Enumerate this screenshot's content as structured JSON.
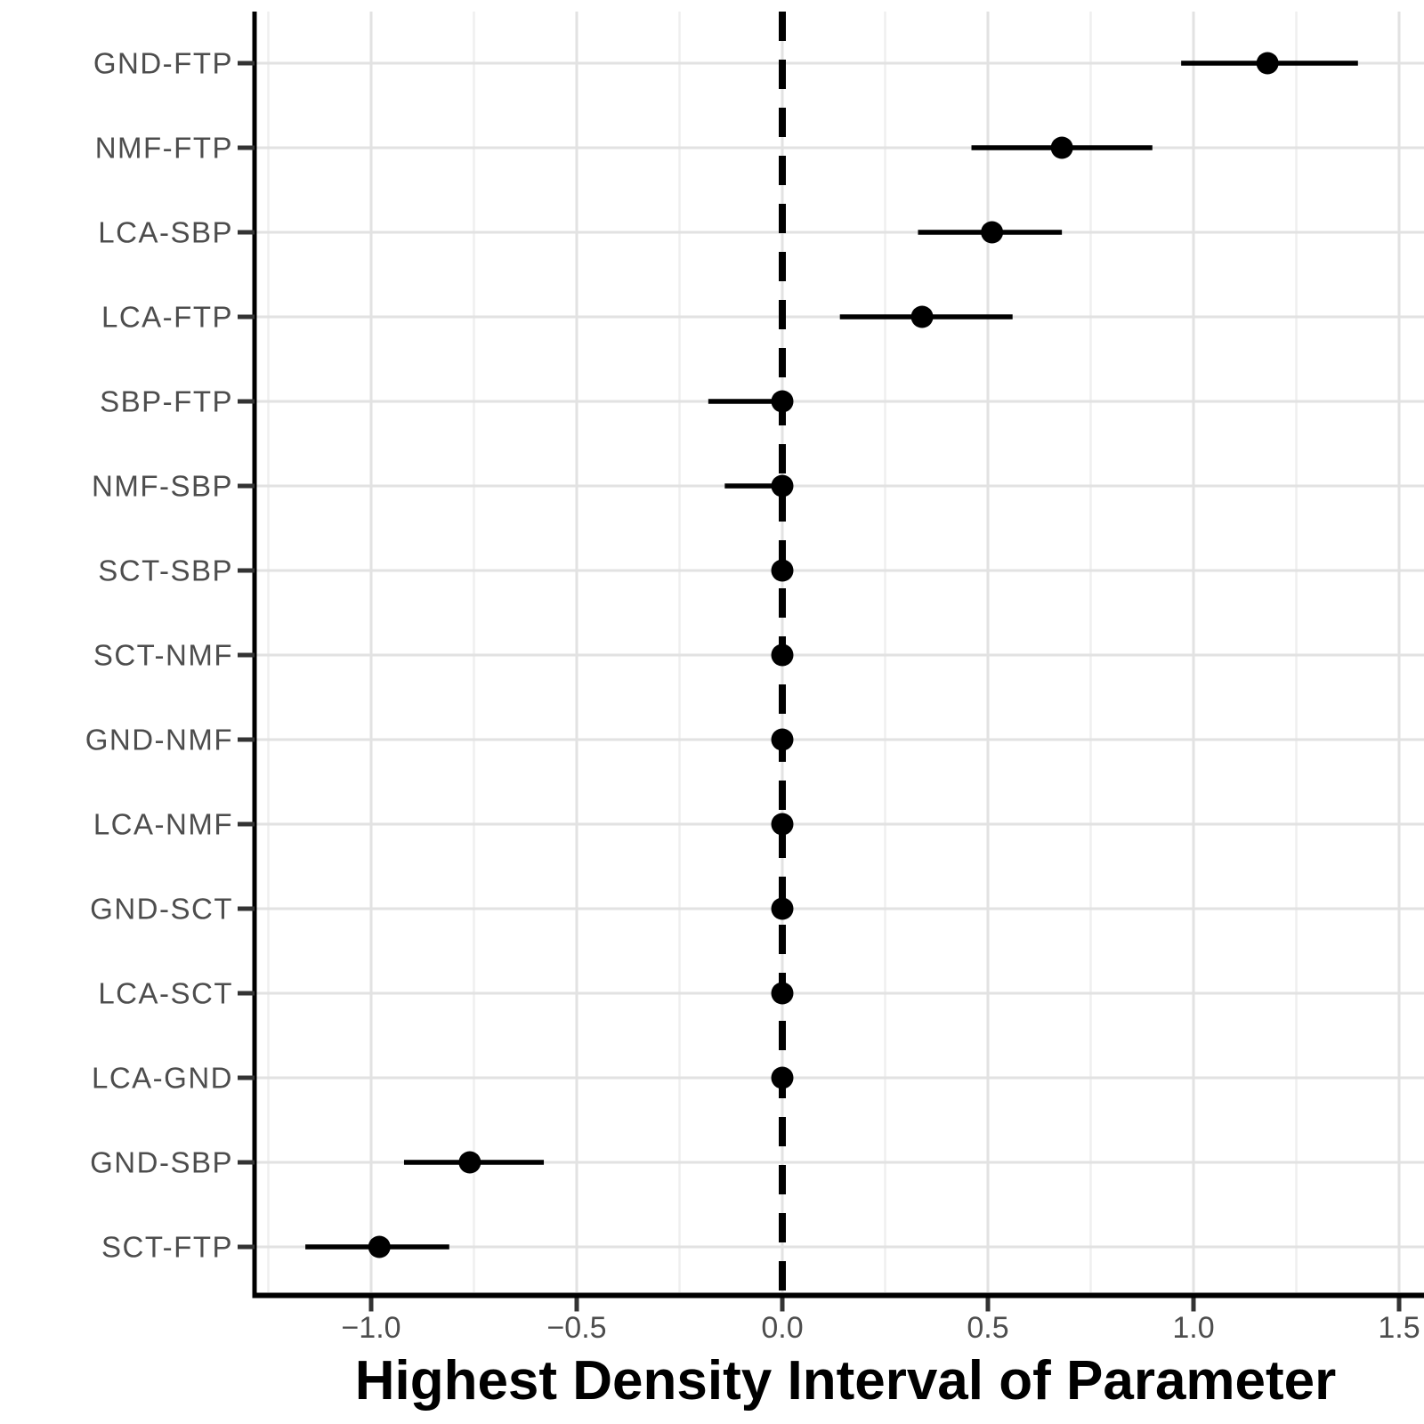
{
  "figure": {
    "xlabel": "Highest Density Interval of Parameter"
  },
  "chart_data": {
    "type": "scatter",
    "subtype": "forest-dot-interval",
    "title": "",
    "xlabel": "Highest Density Interval of Parameter",
    "ylabel": "",
    "xlim": [
      -1.28,
      1.56
    ],
    "x_ticks": [
      -1.0,
      -0.5,
      0.0,
      0.5,
      1.0,
      1.5
    ],
    "x_tick_labels": [
      "−1.0",
      "−0.5",
      "0.0",
      "0.5",
      "1.0",
      "1.5"
    ],
    "x_minor_ticks": [
      -1.25,
      -0.75,
      -0.25,
      0.25,
      0.75,
      1.25
    ],
    "grid": "vertical major+minor, horizontal major per category",
    "legend": "none",
    "reference_line": {
      "x": 0.0,
      "style": "dashed",
      "color": "#000000"
    },
    "categories": [
      "GND-FTP",
      "NMF-FTP",
      "LCA-SBP",
      "LCA-FTP",
      "SBP-FTP",
      "NMF-SBP",
      "SCT-SBP",
      "SCT-NMF",
      "GND-NMF",
      "LCA-NMF",
      "GND-SCT",
      "LCA-SCT",
      "LCA-GND",
      "GND-SBP",
      "SCT-FTP"
    ],
    "series": [
      {
        "name": "Highest Density Interval of Parameter",
        "points": [
          {
            "label": "GND-FTP",
            "estimate": 1.18,
            "lower": 0.97,
            "upper": 1.4
          },
          {
            "label": "NMF-FTP",
            "estimate": 0.68,
            "lower": 0.46,
            "upper": 0.9
          },
          {
            "label": "LCA-SBP",
            "estimate": 0.51,
            "lower": 0.33,
            "upper": 0.68
          },
          {
            "label": "LCA-FTP",
            "estimate": 0.34,
            "lower": 0.14,
            "upper": 0.56
          },
          {
            "label": "SBP-FTP",
            "estimate": 0.0,
            "lower": -0.18,
            "upper": 0.02
          },
          {
            "label": "NMF-SBP",
            "estimate": 0.0,
            "lower": -0.14,
            "upper": 0.02
          },
          {
            "label": "SCT-SBP",
            "estimate": 0.0,
            "lower": -0.02,
            "upper": 0.02
          },
          {
            "label": "SCT-NMF",
            "estimate": 0.0,
            "lower": -0.02,
            "upper": 0.02
          },
          {
            "label": "GND-NMF",
            "estimate": 0.0,
            "lower": -0.02,
            "upper": 0.02
          },
          {
            "label": "LCA-NMF",
            "estimate": 0.0,
            "lower": -0.02,
            "upper": 0.02
          },
          {
            "label": "GND-SCT",
            "estimate": 0.0,
            "lower": -0.02,
            "upper": 0.02
          },
          {
            "label": "LCA-SCT",
            "estimate": 0.0,
            "lower": -0.02,
            "upper": 0.02
          },
          {
            "label": "LCA-GND",
            "estimate": 0.0,
            "lower": -0.02,
            "upper": 0.02
          },
          {
            "label": "GND-SBP",
            "estimate": -0.76,
            "lower": -0.92,
            "upper": -0.58
          },
          {
            "label": "SCT-FTP",
            "estimate": -0.98,
            "lower": -1.16,
            "upper": -0.81
          }
        ]
      }
    ],
    "colors": {
      "point": "#000000",
      "interval": "#000000",
      "axis_line": "#000000",
      "tick": "#333333",
      "tick_label": "#4d4d4d",
      "category_label": "#4d4d4d",
      "axis_title": "#000000",
      "grid_major": "#e2e2e2",
      "grid_minor": "#efefef",
      "background": "#ffffff"
    }
  }
}
